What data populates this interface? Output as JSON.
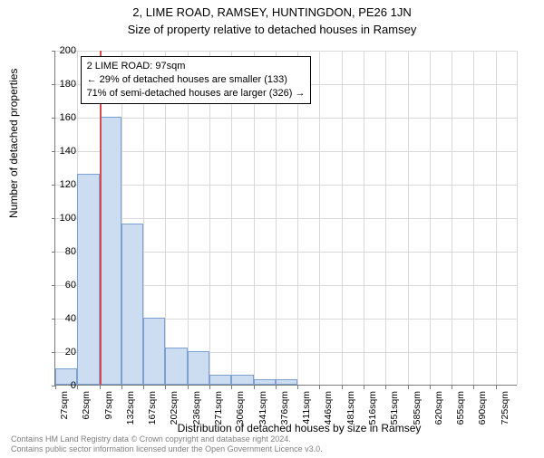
{
  "titles": {
    "main": "2, LIME ROAD, RAMSEY, HUNTINGDON, PE26 1JN",
    "sub": "Size of property relative to detached houses in Ramsey"
  },
  "axes": {
    "y_label": "Number of detached properties",
    "x_label": "Distribution of detached houses by size in Ramsey",
    "y_max": 200,
    "y_tick_step": 20,
    "y_ticks": [
      0,
      20,
      40,
      60,
      80,
      100,
      120,
      140,
      160,
      180,
      200
    ]
  },
  "info_box": {
    "line1": "2 LIME ROAD: 97sqm",
    "line2": "← 29% of detached houses are smaller (133)",
    "line3": "71% of semi-detached houses are larger (326) →"
  },
  "marker": {
    "value_x": 97,
    "color": "#d94a4a"
  },
  "chart": {
    "type": "histogram",
    "bar_fill": "#ccddf1",
    "bar_border": "#7e9fd1",
    "grid_color": "#d9d9d9",
    "axis_color": "#7a7a7a",
    "background": "#ffffff",
    "x_start": 27,
    "bin_width": 35,
    "bins": [
      {
        "label": "27sqm",
        "x": 27,
        "count": 10
      },
      {
        "label": "62sqm",
        "x": 62,
        "count": 126
      },
      {
        "label": "97sqm",
        "x": 97,
        "count": 160
      },
      {
        "label": "132sqm",
        "x": 132,
        "count": 96
      },
      {
        "label": "167sqm",
        "x": 167,
        "count": 40
      },
      {
        "label": "202sqm",
        "x": 202,
        "count": 22
      },
      {
        "label": "236sqm",
        "x": 236,
        "count": 20
      },
      {
        "label": "271sqm",
        "x": 271,
        "count": 6
      },
      {
        "label": "306sqm",
        "x": 306,
        "count": 6
      },
      {
        "label": "341sqm",
        "x": 341,
        "count": 3
      },
      {
        "label": "376sqm",
        "x": 376,
        "count": 3
      },
      {
        "label": "411sqm",
        "x": 411,
        "count": 0
      },
      {
        "label": "446sqm",
        "x": 446,
        "count": 0
      },
      {
        "label": "481sqm",
        "x": 481,
        "count": 0
      },
      {
        "label": "516sqm",
        "x": 516,
        "count": 0
      },
      {
        "label": "551sqm",
        "x": 551,
        "count": 0
      },
      {
        "label": "585sqm",
        "x": 585,
        "count": 0
      },
      {
        "label": "620sqm",
        "x": 620,
        "count": 0
      },
      {
        "label": "655sqm",
        "x": 655,
        "count": 0
      },
      {
        "label": "690sqm",
        "x": 690,
        "count": 0
      },
      {
        "label": "725sqm",
        "x": 725,
        "count": 0
      }
    ]
  },
  "footer": {
    "line1": "Contains HM Land Registry data © Crown copyright and database right 2024.",
    "line2": "Contains public sector information licensed under the Open Government Licence v3.0."
  }
}
